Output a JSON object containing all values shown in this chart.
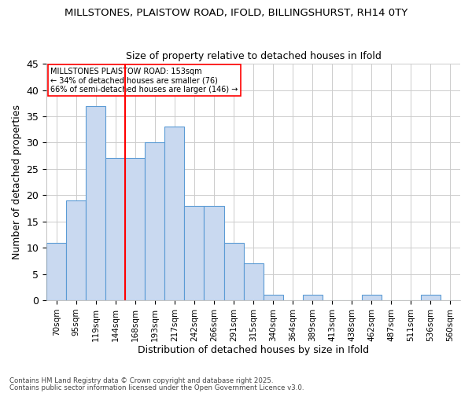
{
  "title_line1": "MILLSTONES, PLAISTOW ROAD, IFOLD, BILLINGSHURST, RH14 0TY",
  "title_line2": "Size of property relative to detached houses in Ifold",
  "xlabel": "Distribution of detached houses by size in Ifold",
  "ylabel": "Number of detached properties",
  "categories": [
    "70sqm",
    "95sqm",
    "119sqm",
    "144sqm",
    "168sqm",
    "193sqm",
    "217sqm",
    "242sqm",
    "266sqm",
    "291sqm",
    "315sqm",
    "340sqm",
    "364sqm",
    "389sqm",
    "413sqm",
    "438sqm",
    "462sqm",
    "487sqm",
    "511sqm",
    "536sqm",
    "560sqm"
  ],
  "values": [
    11,
    19,
    37,
    27,
    27,
    30,
    33,
    18,
    18,
    11,
    7,
    1,
    0,
    1,
    0,
    0,
    1,
    0,
    0,
    1,
    0
  ],
  "bar_color": "#c9d9f0",
  "bar_edge_color": "#5b9bd5",
  "bar_width": 1.0,
  "vline_x": 3.5,
  "vline_color": "red",
  "annotation_box_text": "MILLSTONES PLAISTOW ROAD: 153sqm\n← 34% of detached houses are smaller (76)\n66% of semi-detached houses are larger (146) →",
  "ylim": [
    0,
    45
  ],
  "yticks": [
    0,
    5,
    10,
    15,
    20,
    25,
    30,
    35,
    40,
    45
  ],
  "footnote_line1": "Contains HM Land Registry data © Crown copyright and database right 2025.",
  "footnote_line2": "Contains public sector information licensed under the Open Government Licence v3.0.",
  "background_color": "#ffffff",
  "grid_color": "#cccccc"
}
